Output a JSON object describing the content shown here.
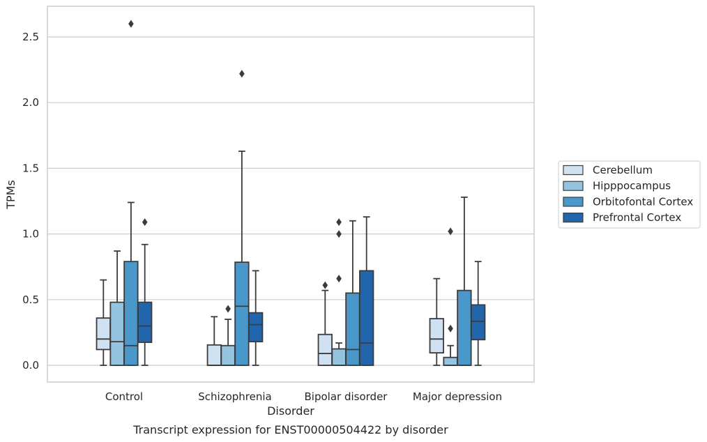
{
  "chart_data": {
    "type": "boxplot",
    "title": "",
    "xlabel": "Disorder",
    "ylabel": "TPMs",
    "caption": "Transcript expression for ENST00000504422 by disorder",
    "ylim": [
      -0.125,
      2.73
    ],
    "yticks": [
      "0.0",
      "0.5",
      "1.0",
      "1.5",
      "2.0",
      "2.5"
    ],
    "ytick_values": [
      0,
      0.5,
      1.0,
      1.5,
      2.0,
      2.5
    ],
    "grid": true,
    "legend_position": "right",
    "categories": [
      "Control",
      "Schizophrenia",
      "Bipolar disorder",
      "Major depression"
    ],
    "series": [
      {
        "name": "Cerebellum",
        "color": "#d0e1f2",
        "boxes": [
          {
            "whislo": 0.0,
            "q1": 0.12,
            "med": 0.2,
            "q3": 0.36,
            "whishi": 0.65,
            "fliers": []
          },
          {
            "whislo": 0.0,
            "q1": 0.0,
            "med": 0.0,
            "q3": 0.155,
            "whishi": 0.37,
            "fliers": []
          },
          {
            "whislo": 0.0,
            "q1": 0.0,
            "med": 0.09,
            "q3": 0.235,
            "whishi": 0.57,
            "fliers": [
              0.61
            ]
          },
          {
            "whislo": 0.0,
            "q1": 0.095,
            "med": 0.2,
            "q3": 0.355,
            "whishi": 0.66,
            "fliers": []
          }
        ]
      },
      {
        "name": "Hipppocampus",
        "color": "#94c4df",
        "boxes": [
          {
            "whislo": 0.0,
            "q1": 0.0,
            "med": 0.18,
            "q3": 0.48,
            "whishi": 0.87,
            "fliers": []
          },
          {
            "whislo": 0.0,
            "q1": 0.0,
            "med": 0.0,
            "q3": 0.15,
            "whishi": 0.35,
            "fliers": [
              0.43
            ]
          },
          {
            "whislo": 0.0,
            "q1": 0.0,
            "med": 0.0,
            "q3": 0.125,
            "whishi": 0.17,
            "fliers": [
              1.0,
              1.09,
              0.66
            ]
          },
          {
            "whislo": 0.0,
            "q1": 0.0,
            "med": 0.0,
            "q3": 0.06,
            "whishi": 0.15,
            "fliers": [
              1.02,
              0.28
            ]
          }
        ]
      },
      {
        "name": "Orbitofontal Cortex",
        "color": "#4a98c9",
        "boxes": [
          {
            "whislo": 0.0,
            "q1": 0.0,
            "med": 0.15,
            "q3": 0.79,
            "whishi": 1.24,
            "fliers": [
              2.6
            ]
          },
          {
            "whislo": 0.0,
            "q1": 0.0,
            "med": 0.45,
            "q3": 0.785,
            "whishi": 1.63,
            "fliers": [
              2.22
            ]
          },
          {
            "whislo": 0.0,
            "q1": 0.0,
            "med": 0.12,
            "q3": 0.55,
            "whishi": 1.1,
            "fliers": []
          },
          {
            "whislo": 0.0,
            "q1": 0.0,
            "med": 0.0,
            "q3": 0.57,
            "whishi": 1.28,
            "fliers": []
          }
        ]
      },
      {
        "name": "Prefrontal Cortex",
        "color": "#2166ac",
        "boxes": [
          {
            "whislo": 0.0,
            "q1": 0.175,
            "med": 0.3,
            "q3": 0.48,
            "whishi": 0.92,
            "fliers": [
              1.09
            ]
          },
          {
            "whislo": 0.0,
            "q1": 0.18,
            "med": 0.31,
            "q3": 0.4,
            "whishi": 0.72,
            "fliers": []
          },
          {
            "whislo": 0.0,
            "q1": 0.0,
            "med": 0.17,
            "q3": 0.72,
            "whishi": 1.13,
            "fliers": []
          },
          {
            "whislo": 0.0,
            "q1": 0.195,
            "med": 0.335,
            "q3": 0.46,
            "whishi": 0.79,
            "fliers": []
          }
        ]
      }
    ]
  }
}
